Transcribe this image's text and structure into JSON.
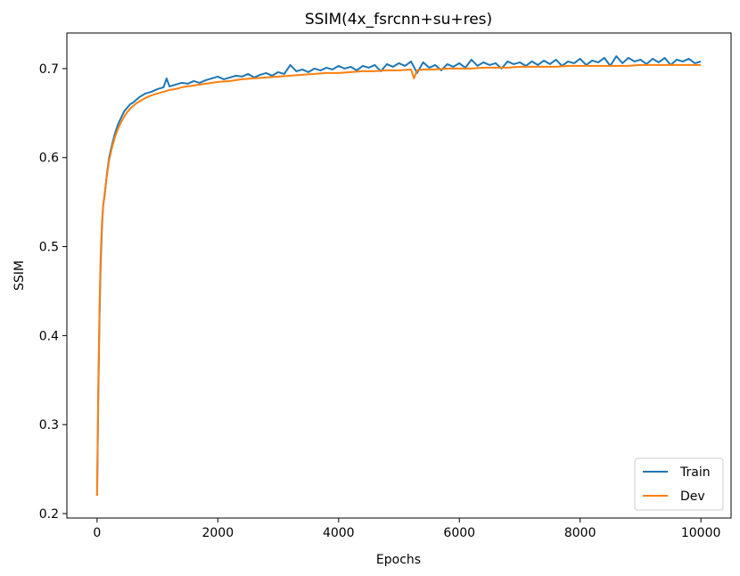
{
  "chart_data": {
    "type": "line",
    "title": "SSIM(4x_fsrcnn+su+res)",
    "xlabel": "Epochs",
    "ylabel": "SSIM",
    "xlim": [
      -500,
      10500
    ],
    "ylim": [
      0.195,
      0.74
    ],
    "xticks": [
      0,
      2000,
      4000,
      6000,
      8000,
      10000
    ],
    "yticks": [
      0.2,
      0.3,
      0.4,
      0.5,
      0.6,
      0.7
    ],
    "grid": false,
    "legend_position": "lower-right",
    "series": [
      {
        "name": "Train",
        "color": "#1f77b4",
        "x": [
          0,
          20,
          40,
          60,
          80,
          100,
          130,
          160,
          200,
          250,
          300,
          350,
          400,
          450,
          500,
          550,
          600,
          650,
          700,
          750,
          800,
          900,
          1000,
          1100,
          1150,
          1200,
          1300,
          1400,
          1500,
          1600,
          1700,
          1800,
          1900,
          2000,
          2100,
          2200,
          2300,
          2400,
          2500,
          2600,
          2700,
          2800,
          2900,
          3000,
          3100,
          3200,
          3300,
          3400,
          3500,
          3600,
          3700,
          3800,
          3900,
          4000,
          4100,
          4200,
          4300,
          4400,
          4500,
          4600,
          4700,
          4800,
          4900,
          5000,
          5100,
          5200,
          5300,
          5400,
          5500,
          5600,
          5700,
          5800,
          5900,
          6000,
          6100,
          6200,
          6300,
          6400,
          6500,
          6600,
          6700,
          6800,
          6900,
          7000,
          7100,
          7200,
          7300,
          7400,
          7500,
          7600,
          7700,
          7800,
          7900,
          8000,
          8100,
          8200,
          8300,
          8400,
          8500,
          8600,
          8700,
          8800,
          8900,
          9000,
          9100,
          9200,
          9300,
          9400,
          9500,
          9600,
          9700,
          9800,
          9900,
          10000
        ],
        "y": [
          0.22,
          0.33,
          0.42,
          0.48,
          0.52,
          0.545,
          0.56,
          0.58,
          0.6,
          0.615,
          0.628,
          0.638,
          0.645,
          0.652,
          0.656,
          0.66,
          0.662,
          0.665,
          0.668,
          0.67,
          0.672,
          0.674,
          0.677,
          0.679,
          0.689,
          0.68,
          0.682,
          0.684,
          0.683,
          0.686,
          0.684,
          0.687,
          0.689,
          0.691,
          0.688,
          0.69,
          0.692,
          0.691,
          0.694,
          0.69,
          0.693,
          0.695,
          0.692,
          0.696,
          0.694,
          0.704,
          0.697,
          0.699,
          0.696,
          0.7,
          0.698,
          0.701,
          0.699,
          0.703,
          0.7,
          0.702,
          0.698,
          0.703,
          0.701,
          0.704,
          0.697,
          0.705,
          0.702,
          0.706,
          0.703,
          0.708,
          0.695,
          0.707,
          0.701,
          0.704,
          0.698,
          0.705,
          0.702,
          0.706,
          0.701,
          0.71,
          0.703,
          0.707,
          0.704,
          0.706,
          0.7,
          0.708,
          0.705,
          0.707,
          0.703,
          0.708,
          0.704,
          0.709,
          0.705,
          0.71,
          0.703,
          0.708,
          0.706,
          0.711,
          0.704,
          0.709,
          0.707,
          0.712,
          0.703,
          0.714,
          0.706,
          0.712,
          0.708,
          0.71,
          0.705,
          0.711,
          0.707,
          0.712,
          0.704,
          0.71,
          0.708,
          0.711,
          0.706,
          0.708
        ]
      },
      {
        "name": "Dev",
        "color": "#ff7f0e",
        "x": [
          0,
          20,
          40,
          60,
          80,
          100,
          130,
          160,
          200,
          250,
          300,
          350,
          400,
          450,
          500,
          550,
          600,
          650,
          700,
          750,
          800,
          900,
          1000,
          1100,
          1200,
          1300,
          1400,
          1500,
          1600,
          1700,
          1800,
          1900,
          2000,
          2200,
          2400,
          2600,
          2800,
          3000,
          3200,
          3400,
          3600,
          3800,
          4000,
          4200,
          4400,
          4600,
          4800,
          5000,
          5200,
          5250,
          5300,
          5400,
          5600,
          5800,
          6000,
          6200,
          6400,
          6600,
          6800,
          7000,
          7200,
          7400,
          7600,
          7800,
          8000,
          8200,
          8400,
          8600,
          8800,
          9000,
          9200,
          9400,
          9600,
          9800,
          10000
        ],
        "y": [
          0.22,
          0.34,
          0.43,
          0.49,
          0.525,
          0.545,
          0.562,
          0.578,
          0.597,
          0.612,
          0.624,
          0.633,
          0.64,
          0.646,
          0.651,
          0.655,
          0.658,
          0.661,
          0.663,
          0.665,
          0.667,
          0.67,
          0.672,
          0.674,
          0.676,
          0.677,
          0.679,
          0.68,
          0.681,
          0.682,
          0.683,
          0.684,
          0.685,
          0.686,
          0.688,
          0.689,
          0.69,
          0.691,
          0.692,
          0.693,
          0.694,
          0.695,
          0.695,
          0.696,
          0.697,
          0.697,
          0.698,
          0.698,
          0.699,
          0.689,
          0.698,
          0.699,
          0.699,
          0.7,
          0.7,
          0.7,
          0.701,
          0.701,
          0.701,
          0.702,
          0.702,
          0.702,
          0.702,
          0.703,
          0.703,
          0.703,
          0.703,
          0.703,
          0.703,
          0.704,
          0.704,
          0.704,
          0.704,
          0.704,
          0.704
        ]
      }
    ]
  }
}
